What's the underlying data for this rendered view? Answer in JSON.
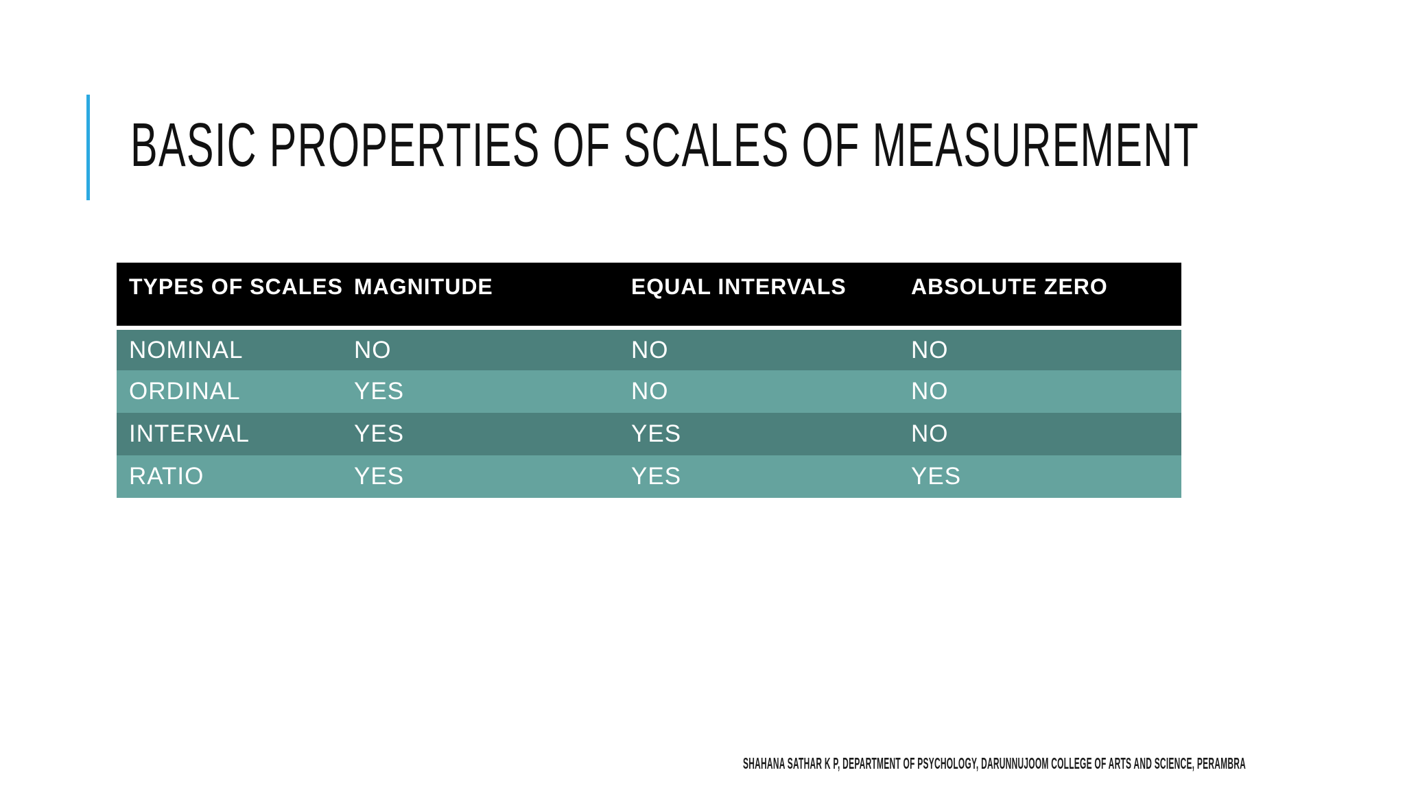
{
  "slide": {
    "title": "BASIC PROPERTIES OF SCALES OF MEASUREMENT",
    "footer": "SHAHANA SATHAR K P, DEPARTMENT OF PSYCHOLOGY, DARUNNUJOOM COLLEGE OF ARTS AND SCIENCE, PERAMBRA"
  },
  "table": {
    "columns": [
      "TYPES OF SCALES",
      "MAGNITUDE",
      "EQUAL INTERVALS",
      "ABSOLUTE ZERO"
    ],
    "rows": [
      {
        "scale": "NOMINAL",
        "magnitude": "NO",
        "equal_intervals": "NO",
        "absolute_zero": "NO"
      },
      {
        "scale": "ORDINAL",
        "magnitude": "YES",
        "equal_intervals": "NO",
        "absolute_zero": "NO"
      },
      {
        "scale": "INTERVAL",
        "magnitude": "YES",
        "equal_intervals": "YES",
        "absolute_zero": "NO"
      },
      {
        "scale": "RATIO",
        "magnitude": "YES",
        "equal_intervals": "YES",
        "absolute_zero": "YES"
      }
    ]
  },
  "colors": {
    "background": "#FFFFFF",
    "accent_line": "#2BA9E1",
    "title_text": "#111111",
    "header_bg": "#000000",
    "header_text": "#FFFFFF",
    "row_dark": "#4C807C",
    "row_light": "#65A39E",
    "row_text": "#FFFFFF"
  }
}
